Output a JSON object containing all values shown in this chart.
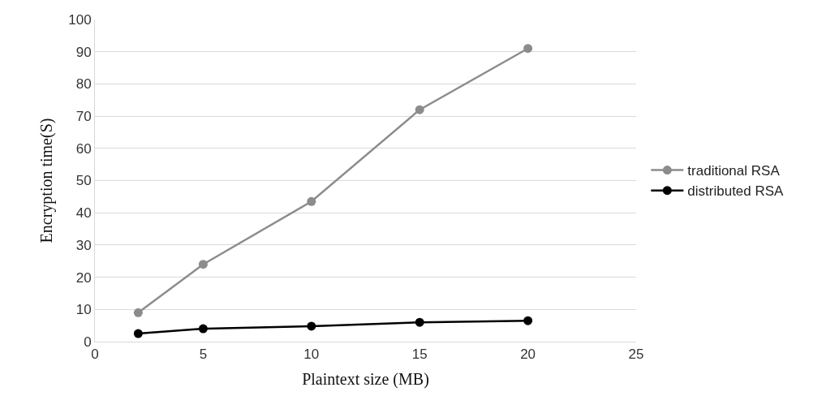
{
  "chart_data": {
    "type": "line",
    "xlabel": "Plaintext size (MB)",
    "ylabel": "Encryption time(S)",
    "x": [
      2,
      5,
      10,
      15,
      20
    ],
    "series": [
      {
        "name": "traditional RSA",
        "color": "#8c8c8c",
        "values": [
          9,
          24,
          43.5,
          72,
          91
        ]
      },
      {
        "name": "distributed RSA",
        "color": "#000000",
        "values": [
          2.5,
          4,
          4.8,
          6,
          6.5
        ]
      }
    ],
    "xlim": [
      0,
      25
    ],
    "xticks": [
      0,
      5,
      10,
      15,
      20,
      25
    ],
    "ylim": [
      0,
      100
    ],
    "yticks": [
      0,
      10,
      20,
      30,
      40,
      50,
      60,
      70,
      80,
      90,
      100
    ],
    "grid": "y",
    "legend": "right",
    "marker": "circle",
    "line_style": "solid"
  }
}
